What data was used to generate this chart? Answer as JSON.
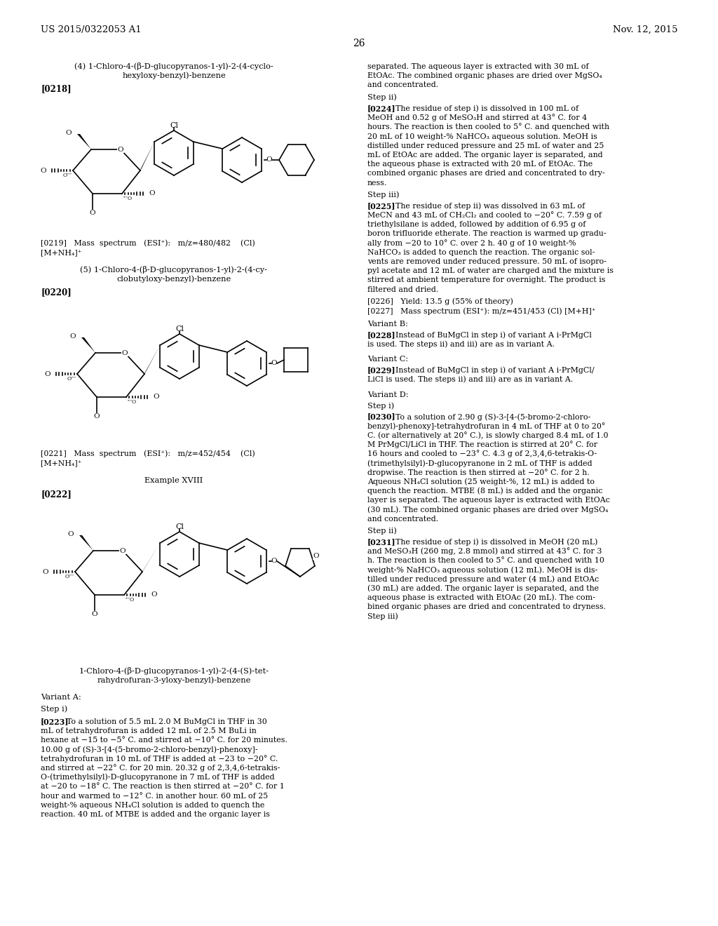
{
  "bg": "#ffffff",
  "header_left": "US 2015/0322053 A1",
  "header_right": "Nov. 12, 2015",
  "page_num": "26",
  "left_col": {
    "comp4_line1": "(4) 1-Chloro-4-(β-D-glucopyranos-1-yl)-2-(4-cyclo-",
    "comp4_line2": "hexyloxy-benzyl)-benzene",
    "ref218": "[0218]",
    "ref219_line1": "[0219]   Mass  spectrum   (ESI⁺):   m/z=480/482    (Cl)",
    "ref219_line2": "[M+NH₄]⁺",
    "comp5_line1": "(5) 1-Chloro-4-(β-D-glucopyranos-1-yl)-2-(4-cy-",
    "comp5_line2": "clobutyloxy-benzyl)-benzene",
    "ref220": "[0220]",
    "ref221_line1": "[0221]   Mass  spectrum   (ESI⁺):   m/z=452/454    (Cl)",
    "ref221_line2": "[M+NH₄]⁺",
    "example": "Example XVIII",
    "ref222": "[0222]",
    "comp_name_line1": "1-Chloro-4-(β-D-glucopyranos-1-yl)-2-(4-(S)-tet-",
    "comp_name_line2": "rahydrofuran-3-yloxy-benzyl)-benzene",
    "variant_a": "Variant A:",
    "step_i": "Step i)",
    "ref223": "[0223]",
    "ref223_body": [
      "To a solution of 5.5 mL 2.0 M BuMgCl in THF in 30",
      "mL of tetrahydrofuran is added 12 mL of 2.5 M BuLi in",
      "hexane at −15 to −5° C. and stirred at −10° C. for 20 minutes.",
      "10.00 g of (S)-3-[4-(5-bromo-2-chloro-benzyl)-phenoxy]-",
      "tetrahydrofuran in 10 mL of THF is added at −23 to −20° C.",
      "and stirred at −22° C. for 20 min. 20.32 g of 2,3,4,6-tetrakis-",
      "O-(trimethylsilyl)-D-glucopyranone in 7 mL of THF is added",
      "at −20 to −18° C. The reaction is then stirred at −20° C. for 1",
      "hour and warmed to −12° C. in another hour. 60 mL of 25",
      "weight-% aqueous NH₄Cl solution is added to quench the",
      "reaction. 40 mL of MTBE is added and the organic layer is"
    ]
  },
  "right_col": {
    "cont_lines": [
      "separated. The aqueous layer is extracted with 30 mL of",
      "EtOAc. The combined organic phases are dried over MgSO₄",
      "and concentrated."
    ],
    "step_ii_a": "Step ii)",
    "ref224": "[0224]",
    "ref224_body": [
      "The residue of step i) is dissolved in 100 mL of",
      "MeOH and 0.52 g of MeSO₃H and stirred at 43° C. for 4",
      "hours. The reaction is then cooled to 5° C. and quenched with",
      "20 mL of 10 weight-% NaHCO₃ aqueous solution. MeOH is",
      "distilled under reduced pressure and 25 mL of water and 25",
      "mL of EtOAc are added. The organic layer is separated, and",
      "the aqueous phase is extracted with 20 mL of EtOAc. The",
      "combined organic phases are dried and concentrated to dry-",
      "ness."
    ],
    "step_iii_a": "Step iii)",
    "ref225": "[0225]",
    "ref225_body": [
      "The residue of step ii) was dissolved in 63 mL of",
      "MeCN and 43 mL of CH₂Cl₂ and cooled to −20° C. 7.59 g of",
      "triethylsilane is added, followed by addition of 6.95 g of",
      "boron trifluoride etherate. The reaction is warmed up gradu-",
      "ally from −20 to 10° C. over 2 h. 40 g of 10 weight-%",
      "NaHCO₃ is added to quench the reaction. The organic sol-",
      "vents are removed under reduced pressure. 50 mL of isopro-",
      "pyl acetate and 12 mL of water are charged and the mixture is",
      "stirred at ambient temperature for overnight. The product is",
      "filtered and dried."
    ],
    "ref226": "[0226]   Yield: 13.5 g (55% of theory)",
    "ref227": "[0227]   Mass spectrum (ESI⁺): m/z=451/453 (Cl) [M+H]⁺",
    "variant_b": "Variant B:",
    "ref228": "[0228]",
    "ref228_body": [
      "Instead of BuMgCl in step i) of variant A i-PrMgCl",
      "is used. The steps ii) and iii) are as in variant A."
    ],
    "variant_c": "Variant C:",
    "ref229": "[0229]",
    "ref229_body": [
      "Instead of BuMgCl in step i) of variant A i-PrMgCl/",
      "LiCl is used. The steps ii) and iii) are as in variant A."
    ],
    "variant_d": "Variant D:",
    "step_i_d": "Step i)",
    "ref230": "[0230]",
    "ref230_body": [
      "To a solution of 2.90 g (S)-3-[4-(5-bromo-2-chloro-",
      "benzyl)-phenoxy]-tetrahydrofuran in 4 mL of THF at 0 to 20°",
      "C. (or alternatively at 20° C.), is slowly charged 8.4 mL of 1.0",
      "M PrMgCl/LiCl in THF. The reaction is stirred at 20° C. for",
      "16 hours and cooled to −23° C. 4.3 g of 2,3,4,6-tetrakis-O-",
      "(trimethylsilyl)-D-glucopyranone in 2 mL of THF is added",
      "dropwise. The reaction is then stirred at −20° C. for 2 h.",
      "Aqueous NH₄Cl solution (25 weight-%, 12 mL) is added to",
      "quench the reaction. MTBE (8 mL) is added and the organic",
      "layer is separated. The aqueous layer is extracted with EtOAc",
      "(30 mL). The combined organic phases are dried over MgSO₄",
      "and concentrated."
    ],
    "step_ii_d": "Step ii)",
    "ref231": "[0231]",
    "ref231_body": [
      "The residue of step i) is dissolved in MeOH (20 mL)",
      "and MeSO₃H (260 mg, 2.8 mmol) and stirred at 43° C. for 3",
      "h. The reaction is then cooled to 5° C. and quenched with 10",
      "weight-% NaHCO₃ aqueous solution (12 mL). MeOH is dis-",
      "tilled under reduced pressure and water (4 mL) and EtOAc",
      "(30 mL) are added. The organic layer is separated, and the",
      "aqueous phase is extracted with EtOAc (20 mL). The com-",
      "bined organic phases are dried and concentrated to dryness.",
      "Step iii)"
    ]
  }
}
